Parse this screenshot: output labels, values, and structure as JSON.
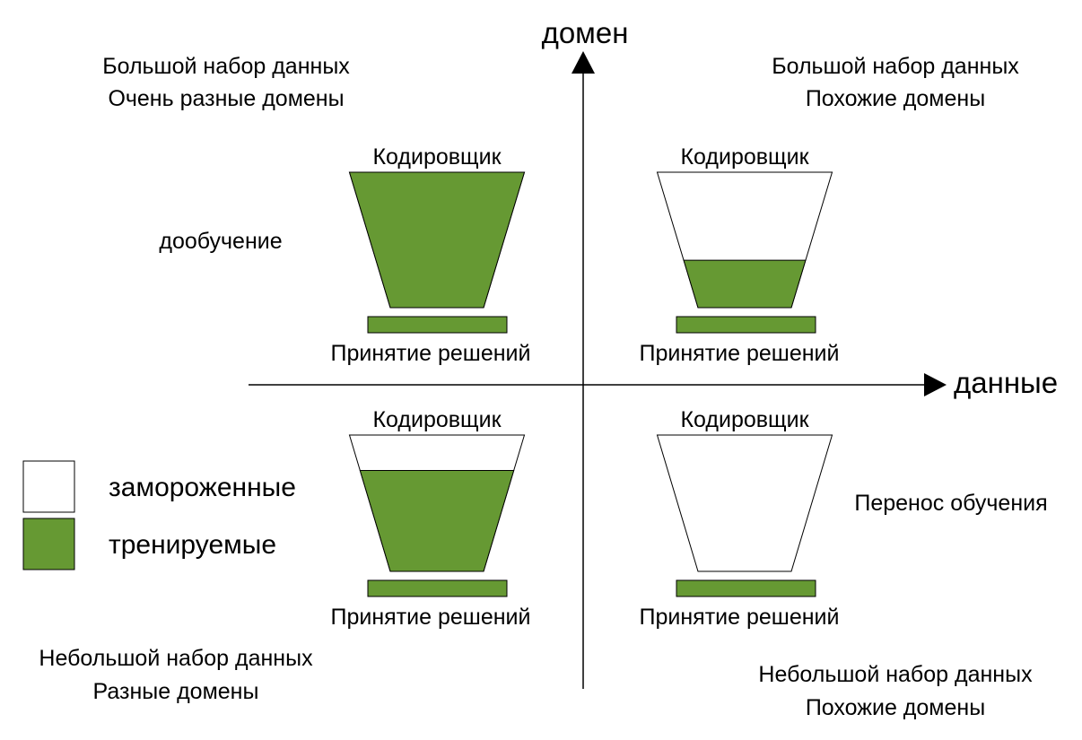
{
  "colors": {
    "trainable": "#669933",
    "frozen": "#ffffff",
    "stroke": "#000000"
  },
  "axes": {
    "y_label": "домен",
    "x_label": "данные"
  },
  "quadrants": {
    "top_left": {
      "line1": "Большой набор данных",
      "line2": "Очень разные домены",
      "method": "дообучение",
      "encoder_label": "Кодировщик",
      "head_label": "Принятие решений",
      "trainable_fraction": 1.0
    },
    "top_right": {
      "line1": "Большой набор данных",
      "line2": "Похожие домены",
      "encoder_label": "Кодировщик",
      "head_label": "Принятие решений",
      "trainable_fraction": 0.35
    },
    "bottom_left": {
      "line1": "Небольшой набор данных",
      "line2": "Разные домены",
      "encoder_label": "Кодировщик",
      "head_label": "Принятие решений",
      "trainable_fraction": 0.74
    },
    "bottom_right": {
      "line1": "Небольшой набор данных",
      "line2": "Похожие домены",
      "method": "Перенос обучения",
      "encoder_label": "Кодировщик",
      "head_label": "Принятие решений",
      "trainable_fraction": 0.0
    }
  },
  "legend": {
    "frozen_label": "замороженные",
    "trainable_label": "тренируемые"
  }
}
